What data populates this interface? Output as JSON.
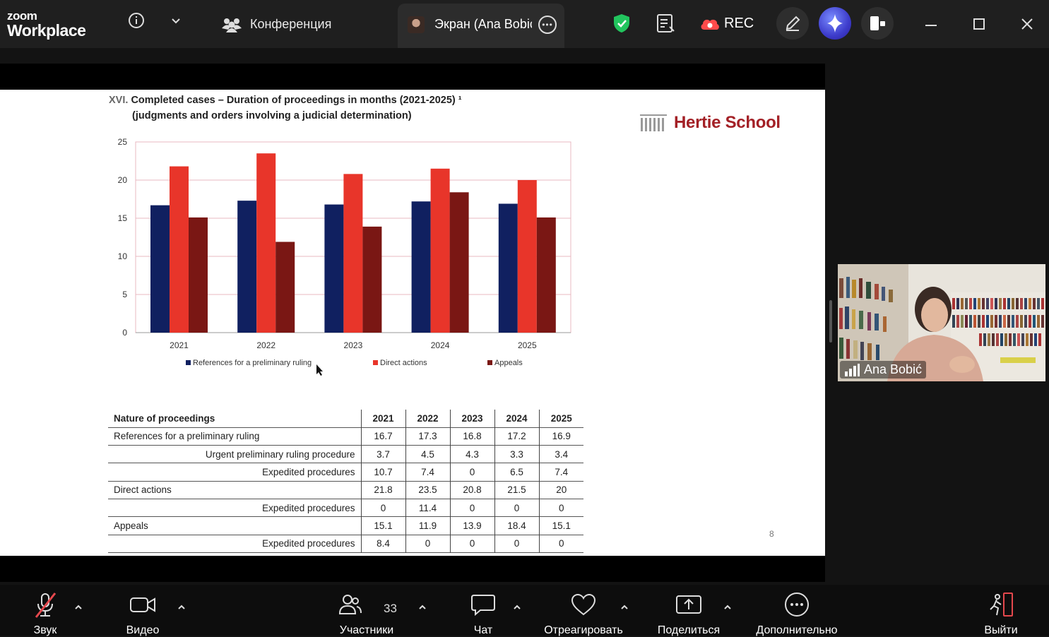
{
  "app": {
    "logo_line1": "zoom",
    "logo_line2": "Workplace"
  },
  "topbar": {
    "conference_label": "Конференция",
    "share_tab_title": "Экран (Ana Bobić",
    "rec_label": "REC"
  },
  "slide": {
    "title_number": "XVI.",
    "title": "Completed cases – Duration of proceedings in months (2021-2025) ¹",
    "subtitle": "(judgments and orders involving a judicial determination)",
    "logo_text": "Hertie School",
    "page_number": "8"
  },
  "chart_data": {
    "type": "bar",
    "categories": [
      "2021",
      "2022",
      "2023",
      "2024",
      "2025"
    ],
    "series": [
      {
        "name": "References for a preliminary ruling",
        "values": [
          16.7,
          17.3,
          16.8,
          17.2,
          16.9
        ],
        "color": "#102060"
      },
      {
        "name": "Direct actions",
        "values": [
          21.8,
          23.5,
          20.8,
          21.5,
          20
        ],
        "color": "#e8352a"
      },
      {
        "name": "Appeals",
        "values": [
          15.1,
          11.9,
          13.9,
          18.4,
          15.1
        ],
        "color": "#7a1714"
      }
    ],
    "yticks": [
      "0",
      "5",
      "10",
      "15",
      "20",
      "25"
    ],
    "ylim": [
      0,
      25
    ],
    "grid": true,
    "legend_position": "bottom"
  },
  "table": {
    "header": [
      "Nature of proceedings",
      "2021",
      "2022",
      "2023",
      "2024",
      "2025"
    ],
    "rows": [
      {
        "label": "References for a preliminary ruling",
        "sub": false,
        "values": [
          "16.7",
          "17.3",
          "16.8",
          "17.2",
          "16.9"
        ]
      },
      {
        "label": "Urgent preliminary ruling procedure",
        "sub": true,
        "values": [
          "3.7",
          "4.5",
          "4.3",
          "3.3",
          "3.4"
        ]
      },
      {
        "label": "Expedited procedures",
        "sub": true,
        "values": [
          "10.7",
          "7.4",
          "0",
          "6.5",
          "7.4"
        ]
      },
      {
        "label": "Direct actions",
        "sub": false,
        "values": [
          "21.8",
          "23.5",
          "20.8",
          "21.5",
          "20"
        ]
      },
      {
        "label": "Expedited procedures",
        "sub": true,
        "values": [
          "0",
          "11.4",
          "0",
          "0",
          "0"
        ]
      },
      {
        "label": "Appeals",
        "sub": false,
        "values": [
          "15.1",
          "11.9",
          "13.9",
          "18.4",
          "15.1"
        ]
      },
      {
        "label": "Expedited procedures",
        "sub": true,
        "values": [
          "8.4",
          "0",
          "0",
          "0",
          "0"
        ]
      }
    ]
  },
  "participant": {
    "name": "Ana Bobić"
  },
  "toolbar": {
    "audio_label": "Звук",
    "video_label": "Видео",
    "participants_label": "Участники",
    "participants_count": "33",
    "chat_label": "Чат",
    "react_label": "Отреагировать",
    "share_label": "Поделиться",
    "more_label": "Дополнительно",
    "leave_label": "Выйти"
  },
  "colors": {
    "accent_green": "#22c55e",
    "rec_red": "#ff4b4b",
    "leave_red": "#e5484d",
    "hertie_red": "#a32026"
  }
}
